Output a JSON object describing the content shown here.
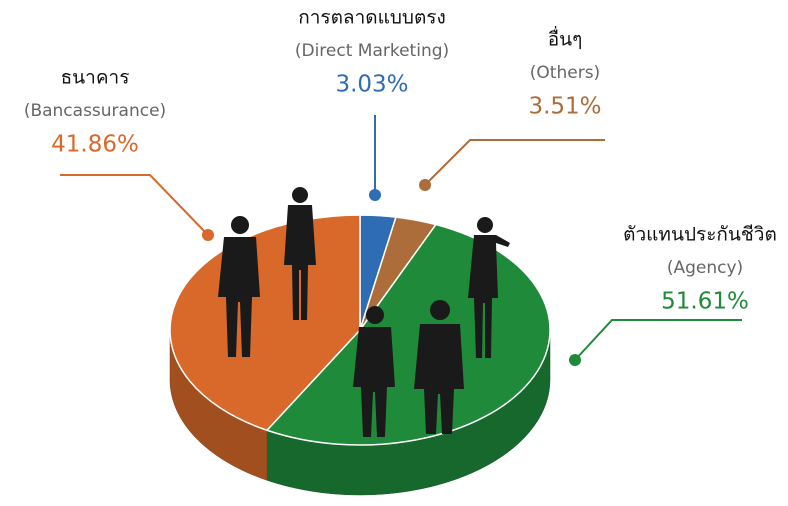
{
  "chart_data": {
    "type": "pie",
    "categories": [
      "ธนาคาร",
      "การตลาดแบบตรง",
      "อื่นๆ",
      "ตัวแทนประกันชีวิต"
    ],
    "category_notes": [
      "(Bancassurance)",
      "(Direct Marketing)",
      "(Others)",
      "(Agency)"
    ],
    "values": [
      41.86,
      3.03,
      3.51,
      51.61
    ],
    "value_labels": [
      "41.86%",
      "3.03%",
      "3.51%",
      "51.61%"
    ],
    "colors": [
      "#d8692a",
      "#2e6db4",
      "#ad6d3a",
      "#1f8a3a"
    ]
  }
}
